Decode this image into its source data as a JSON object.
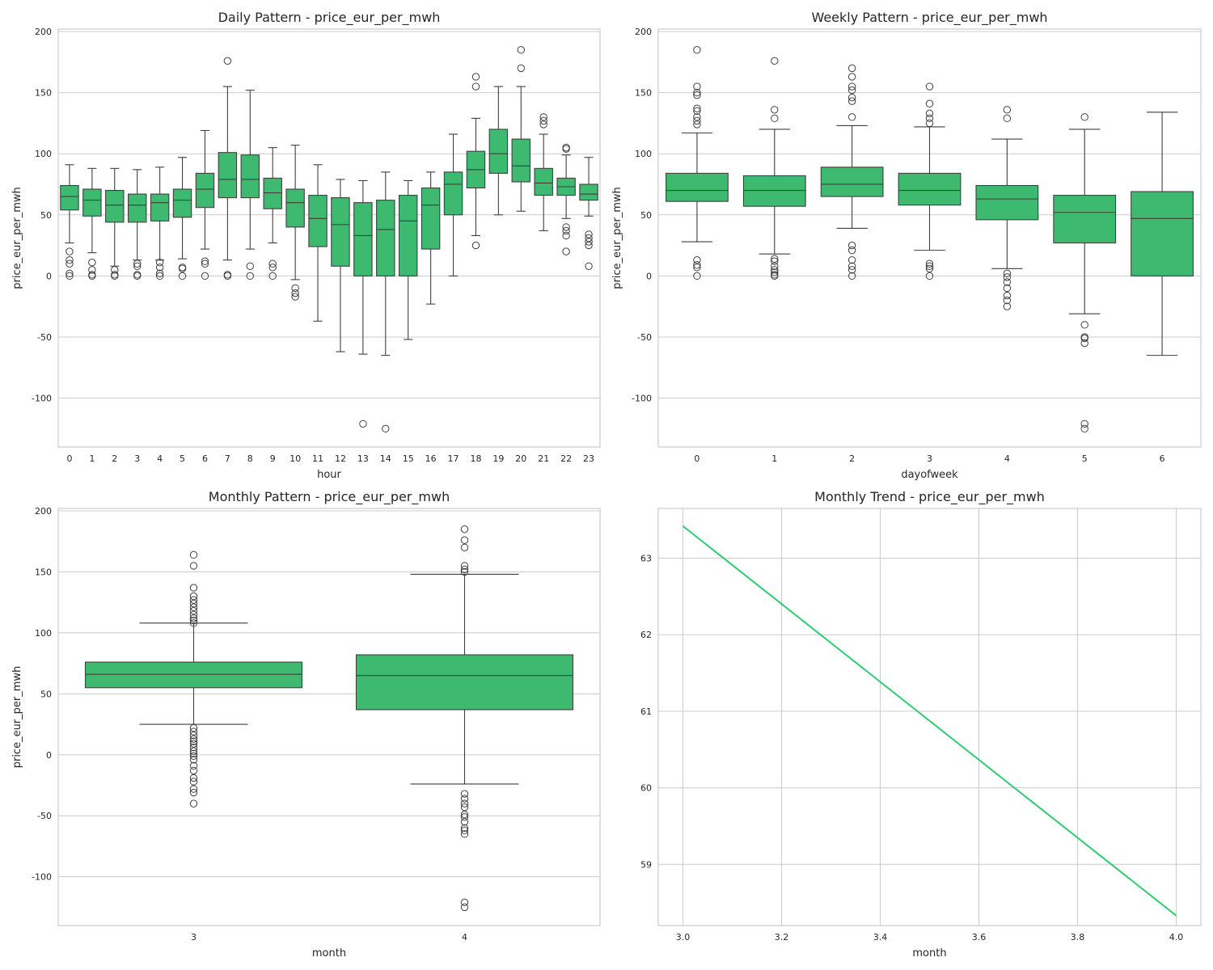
{
  "colors": {
    "box_fill": "#3dba6f",
    "line": "#2ecc71",
    "edge": "#3f3f3f",
    "grid": "#cccccc"
  },
  "chart_data": [
    {
      "type": "box",
      "title": "Daily Pattern - price_eur_per_mwh",
      "xlabel": "hour",
      "ylabel": "price_eur_per_mwh",
      "ylim": [
        -140,
        202
      ],
      "yticks": [
        -100,
        -50,
        0,
        50,
        100,
        150,
        200
      ],
      "grid": "horizontal",
      "categories": [
        "0",
        "1",
        "2",
        "3",
        "4",
        "5",
        "6",
        "7",
        "8",
        "9",
        "10",
        "11",
        "12",
        "13",
        "14",
        "15",
        "16",
        "17",
        "18",
        "19",
        "20",
        "21",
        "22",
        "23"
      ],
      "boxes": [
        {
          "q1": 54,
          "median": 65,
          "q3": 74,
          "low": 27,
          "high": 91,
          "fliers": [
            20,
            13,
            10,
            2,
            0
          ]
        },
        {
          "q1": 49,
          "median": 62,
          "q3": 71,
          "low": 19,
          "high": 88,
          "fliers": [
            11,
            5,
            1,
            0
          ]
        },
        {
          "q1": 44,
          "median": 58,
          "q3": 70,
          "low": 8,
          "high": 88,
          "fliers": [
            5,
            1,
            0
          ]
        },
        {
          "q1": 44,
          "median": 58,
          "q3": 67,
          "low": 13,
          "high": 87,
          "fliers": [
            10,
            8,
            1,
            0
          ]
        },
        {
          "q1": 45,
          "median": 60,
          "q3": 67,
          "low": 13,
          "high": 89,
          "fliers": [
            11,
            7,
            2,
            0
          ]
        },
        {
          "q1": 48,
          "median": 62,
          "q3": 71,
          "low": 14,
          "high": 97,
          "fliers": [
            7,
            6,
            0
          ]
        },
        {
          "q1": 56,
          "median": 71,
          "q3": 84,
          "low": 22,
          "high": 119,
          "fliers": [
            12,
            10,
            0
          ]
        },
        {
          "q1": 64,
          "median": 79,
          "q3": 101,
          "low": 13,
          "high": 155,
          "fliers": [
            176,
            1,
            0
          ]
        },
        {
          "q1": 64,
          "median": 79,
          "q3": 99,
          "low": 22,
          "high": 152,
          "fliers": [
            8,
            0
          ]
        },
        {
          "q1": 55,
          "median": 68,
          "q3": 80,
          "low": 27,
          "high": 105,
          "fliers": [
            10,
            7,
            0
          ]
        },
        {
          "q1": 40,
          "median": 60,
          "q3": 71,
          "low": -3,
          "high": 107,
          "fliers": [
            -10,
            -14,
            -17
          ]
        },
        {
          "q1": 24,
          "median": 47,
          "q3": 66,
          "low": -37,
          "high": 91,
          "fliers": []
        },
        {
          "q1": 8,
          "median": 42,
          "q3": 64,
          "low": -62,
          "high": 79,
          "fliers": []
        },
        {
          "q1": 0,
          "median": 33,
          "q3": 60,
          "low": -64,
          "high": 78,
          "fliers": [
            -121
          ]
        },
        {
          "q1": 0,
          "median": 38,
          "q3": 62,
          "low": -65,
          "high": 85,
          "fliers": [
            -125
          ]
        },
        {
          "q1": 0,
          "median": 45,
          "q3": 66,
          "low": -52,
          "high": 78,
          "fliers": []
        },
        {
          "q1": 22,
          "median": 58,
          "q3": 72,
          "low": -23,
          "high": 85,
          "fliers": []
        },
        {
          "q1": 50,
          "median": 75,
          "q3": 85,
          "low": 0,
          "high": 116,
          "fliers": []
        },
        {
          "q1": 72,
          "median": 87,
          "q3": 102,
          "low": 33,
          "high": 129,
          "fliers": [
            163,
            155,
            25
          ]
        },
        {
          "q1": 84,
          "median": 100,
          "q3": 120,
          "low": 50,
          "high": 155,
          "fliers": []
        },
        {
          "q1": 77,
          "median": 90,
          "q3": 112,
          "low": 53,
          "high": 155,
          "fliers": [
            185,
            170
          ]
        },
        {
          "q1": 66,
          "median": 76,
          "q3": 88,
          "low": 37,
          "high": 116,
          "fliers": [
            130,
            127,
            124
          ]
        },
        {
          "q1": 66,
          "median": 73,
          "q3": 80,
          "low": 47,
          "high": 99,
          "fliers": [
            105,
            104,
            40,
            37,
            33,
            20
          ]
        },
        {
          "q1": 62,
          "median": 67,
          "q3": 75,
          "low": 49,
          "high": 97,
          "fliers": [
            34,
            31,
            28,
            25,
            8
          ]
        }
      ]
    },
    {
      "type": "box",
      "title": "Weekly Pattern - price_eur_per_mwh",
      "xlabel": "dayofweek",
      "ylabel": "price_eur_per_mwh",
      "ylim": [
        -140,
        202
      ],
      "yticks": [
        -100,
        -50,
        0,
        50,
        100,
        150,
        200
      ],
      "grid": "horizontal",
      "categories": [
        "0",
        "1",
        "2",
        "3",
        "4",
        "5",
        "6"
      ],
      "boxes": [
        {
          "q1": 61,
          "median": 70,
          "q3": 84,
          "low": 28,
          "high": 117,
          "fliers": [
            185,
            155,
            150,
            148,
            137,
            135,
            130,
            127,
            124,
            13,
            9,
            7,
            0
          ]
        },
        {
          "q1": 57,
          "median": 70,
          "q3": 82,
          "low": 18,
          "high": 120,
          "fliers": [
            176,
            136,
            129,
            14,
            12,
            8,
            5,
            3,
            1,
            0
          ]
        },
        {
          "q1": 65,
          "median": 75,
          "q3": 89,
          "low": 39,
          "high": 123,
          "fliers": [
            170,
            163,
            155,
            152,
            146,
            143,
            130,
            25,
            21,
            13,
            8,
            5,
            0
          ]
        },
        {
          "q1": 58,
          "median": 70,
          "q3": 84,
          "low": 21,
          "high": 122,
          "fliers": [
            155,
            141,
            133,
            129,
            125,
            10,
            8,
            6,
            0
          ]
        },
        {
          "q1": 46,
          "median": 63,
          "q3": 74,
          "low": 6,
          "high": 112,
          "fliers": [
            136,
            129,
            2,
            -1,
            -5,
            -10,
            -16,
            -20,
            -25
          ]
        },
        {
          "q1": 27,
          "median": 52,
          "q3": 66,
          "low": -31,
          "high": 120,
          "fliers": [
            130,
            -40,
            -50,
            -51,
            -55,
            -121,
            -125
          ]
        },
        {
          "q1": 0,
          "median": 47,
          "q3": 69,
          "low": -65,
          "high": 134,
          "fliers": []
        }
      ]
    },
    {
      "type": "box",
      "title": "Monthly Pattern - price_eur_per_mwh",
      "xlabel": "month",
      "ylabel": "price_eur_per_mwh",
      "ylim": [
        -140,
        202
      ],
      "yticks": [
        -100,
        -50,
        0,
        50,
        100,
        150,
        200
      ],
      "grid": "horizontal",
      "categories": [
        "3",
        "4"
      ],
      "boxes": [
        {
          "q1": 55,
          "median": 66,
          "q3": 76,
          "low": 25,
          "high": 108,
          "fliers": [
            164,
            155,
            137,
            130,
            127,
            124,
            121,
            118,
            115,
            112,
            110,
            108,
            22,
            19,
            16,
            13,
            11,
            9,
            6,
            3,
            1,
            -1,
            -4,
            -9,
            -13,
            -19,
            -22,
            -28,
            -31,
            -40
          ]
        },
        {
          "q1": 37,
          "median": 65,
          "q3": 82,
          "low": -24,
          "high": 148,
          "fliers": [
            185,
            176,
            170,
            155,
            152,
            150,
            -32,
            -36,
            -40,
            -43,
            -49,
            -51,
            -55,
            -60,
            -62,
            -65,
            -121,
            -125
          ]
        }
      ]
    },
    {
      "type": "line",
      "title": "Monthly Trend - price_eur_per_mwh",
      "xlabel": "month",
      "ylabel": "",
      "xlim": [
        2.95,
        4.05
      ],
      "ylim": [
        58.2,
        63.65
      ],
      "xticks": [
        3.0,
        3.2,
        3.4,
        3.6,
        3.8,
        4.0
      ],
      "xticklabels": [
        "3.0",
        "3.2",
        "3.4",
        "3.6",
        "3.8",
        "4.0"
      ],
      "yticks": [
        59,
        60,
        61,
        62,
        63
      ],
      "grid": "both",
      "series": [
        {
          "x": [
            3,
            4
          ],
          "y": [
            63.42,
            58.33
          ]
        }
      ]
    }
  ]
}
